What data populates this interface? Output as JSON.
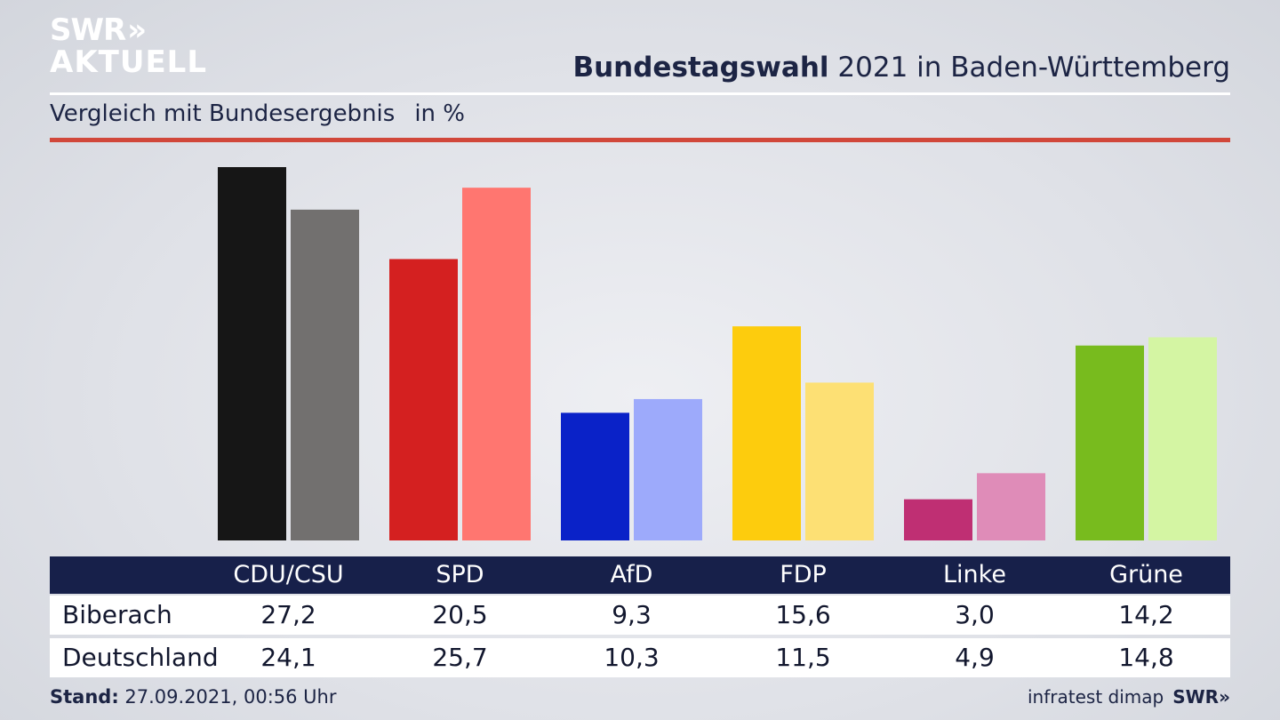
{
  "logo": {
    "line1": "SWR",
    "arrows": "»",
    "line2": "AKTUELL"
  },
  "header": {
    "title_bold": "Bundestagswahl",
    "title_rest": " 2021 in Baden-Württemberg",
    "subtitle": "Vergleich mit Bundesergebnis",
    "unit": "in %"
  },
  "chart_data": {
    "type": "bar",
    "categories": [
      "CDU/CSU",
      "SPD",
      "AfD",
      "FDP",
      "Linke",
      "Grüne"
    ],
    "series": [
      {
        "name": "Biberach",
        "values": [
          27.2,
          20.5,
          9.3,
          15.6,
          3.0,
          14.2
        ],
        "colors": [
          "#161616",
          "#d42020",
          "#0a22c8",
          "#fdcc0d",
          "#bf2f73",
          "#78bb1e"
        ]
      },
      {
        "name": "Deutschland",
        "values": [
          24.1,
          25.7,
          10.3,
          11.5,
          4.9,
          14.8
        ],
        "colors": [
          "#72706f",
          "#ff7670",
          "#9daafb",
          "#fde074",
          "#df8cb8",
          "#d4f5a3"
        ]
      }
    ],
    "ylim": [
      0,
      27.2
    ],
    "grid": false
  },
  "table": {
    "headers": [
      "CDU/CSU",
      "SPD",
      "AfD",
      "FDP",
      "Linke",
      "Grüne"
    ],
    "rows": [
      {
        "label": "Biberach",
        "cells": [
          "27,2",
          "20,5",
          "9,3",
          "15,6",
          "3,0",
          "14,2"
        ]
      },
      {
        "label": "Deutschland",
        "cells": [
          "24,1",
          "25,7",
          "10,3",
          "11,5",
          "4,9",
          "14,8"
        ]
      }
    ]
  },
  "footer": {
    "stand_label": "Stand:",
    "stand_value": " 27.09.2021, 00:56 Uhr",
    "source": "infratest dimap",
    "brand": "SWR",
    "brand_arrows": "»"
  }
}
